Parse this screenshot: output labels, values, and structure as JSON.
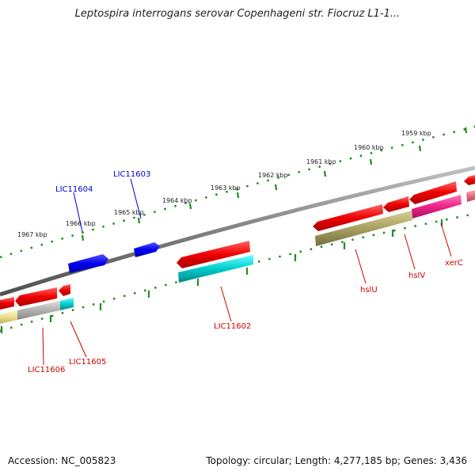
{
  "title": "Leptospira interrogans serovar Copenhageni str. Fiocruz L1-1...",
  "footer": {
    "accession": "Accession: NC_005823",
    "summary": "Topology: circular; Length: 4,277,185 bp; Genes: 3,436"
  },
  "scale_labels": [
    "1967 kbp",
    "1966 kbp",
    "1965 kbp",
    "1964 kbp",
    "1963 kbp",
    "1962 kbp",
    "1961 kbp",
    "1960 kbp",
    "1959 kbp"
  ],
  "gene_labels": {
    "LIC11604": "LIC11604",
    "LIC11603": "LIC11603",
    "LIC11602": "LIC11602",
    "LIC11605": "LIC11605",
    "LIC11606": "LIC11606",
    "hslU": "hslU",
    "hslV": "hslV",
    "xerC": "xerC"
  },
  "colors": {
    "backbone": "#808080",
    "scale_ticks": "#228B22",
    "forward_gene": "#0000ee",
    "reverse_gene": "#ee0000",
    "label_blue": "#0000cc",
    "label_red": "#cc0000",
    "cyan_feature": "#00c8c8",
    "olive_feature": "#a8a060",
    "magenta_feature": "#ee2288",
    "gray_feature": "#b0b0b0",
    "yellow_feature": "#e8e090",
    "pink_feature": "#e07080"
  }
}
